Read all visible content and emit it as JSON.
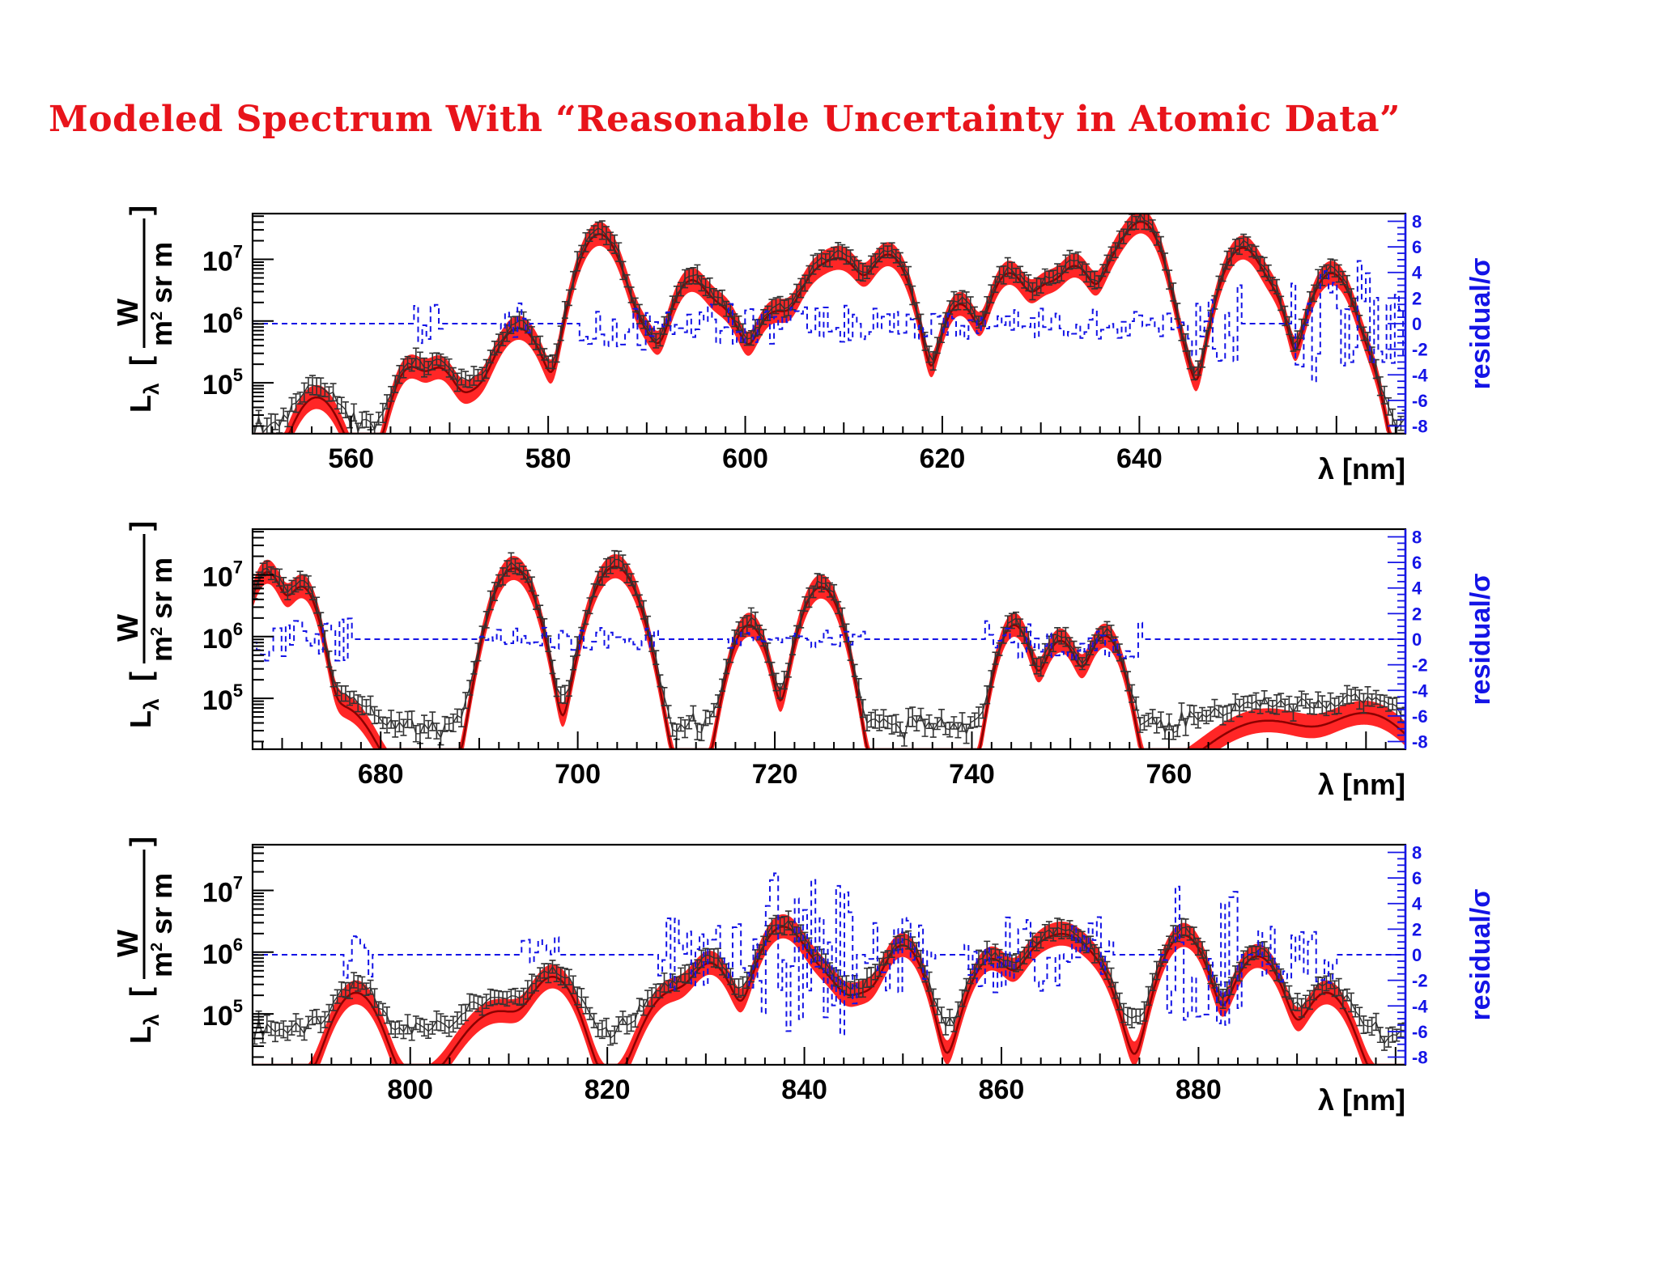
{
  "page": {
    "title": "Modeled Spectrum With “Reasonable Uncertainty in Atomic Data”"
  },
  "colors": {
    "title": "#e8141b",
    "data_points": "#333333",
    "model_line": "#8b0000",
    "uncertainty_band": "#ff1a1a",
    "residual_line": "#1414e6",
    "axis": "#000000"
  },
  "axes_common": {
    "y_label_main": "L",
    "y_label_sub": "λ",
    "y_label_unit_num": "W",
    "y_label_unit_den": "m",
    "y_label_unit_den_sup": "2",
    "y_label_unit_den_rest": " sr m",
    "y_scale": "log",
    "y_ticks": [
      {
        "value": 100000,
        "base": "10",
        "exp": "5"
      },
      {
        "value": 1000000,
        "base": "10",
        "exp": "6"
      },
      {
        "value": 10000000,
        "base": "10",
        "exp": "7"
      }
    ],
    "y_range": [
      15000,
      55000000
    ],
    "x_label": "λ [nm]",
    "residual_label": "residual/σ",
    "residual_range": [
      -8.6,
      8.6
    ],
    "residual_ticks": [
      "8",
      "6",
      "4",
      "2",
      "0",
      "-2",
      "-4",
      "-6",
      "-8"
    ]
  },
  "chart_data": [
    {
      "type": "line",
      "x_range": [
        550,
        667
      ],
      "x_ticks": [
        "560",
        "580",
        "600",
        "620",
        "640"
      ],
      "data_floor": 17000,
      "peaks": [
        {
          "x": 556.5,
          "y": 65000,
          "w": 1.6
        },
        {
          "x": 566.0,
          "y": 200000,
          "w": 1.2
        },
        {
          "x": 569.0,
          "y": 190000,
          "w": 1.2
        },
        {
          "x": 572.5,
          "y": 70000,
          "w": 1.5
        },
        {
          "x": 577.0,
          "y": 900000,
          "w": 1.6
        },
        {
          "x": 585.2,
          "y": 30000000,
          "w": 1.4
        },
        {
          "x": 589.0,
          "y": 900000,
          "w": 1.5
        },
        {
          "x": 594.5,
          "y": 5200000,
          "w": 1.3
        },
        {
          "x": 597.5,
          "y": 1800000,
          "w": 1.4
        },
        {
          "x": 603.0,
          "y": 1600000,
          "w": 1.4
        },
        {
          "x": 607.5,
          "y": 7000000,
          "w": 1.5
        },
        {
          "x": 610.0,
          "y": 10000000,
          "w": 1.4
        },
        {
          "x": 614.5,
          "y": 14000000,
          "w": 1.4
        },
        {
          "x": 621.8,
          "y": 2200000,
          "w": 1.2
        },
        {
          "x": 626.8,
          "y": 7000000,
          "w": 1.3
        },
        {
          "x": 630.5,
          "y": 4000000,
          "w": 1.2
        },
        {
          "x": 633.5,
          "y": 9000000,
          "w": 1.3
        },
        {
          "x": 638.0,
          "y": 12000000,
          "w": 1.3
        },
        {
          "x": 640.3,
          "y": 45000000,
          "w": 1.3
        },
        {
          "x": 644.0,
          "y": 300000,
          "w": 1.0
        },
        {
          "x": 650.5,
          "y": 18000000,
          "w": 1.4
        },
        {
          "x": 653.5,
          "y": 2500000,
          "w": 1.0
        },
        {
          "x": 659.5,
          "y": 7000000,
          "w": 1.4
        },
        {
          "x": 663.0,
          "y": 200000,
          "w": 1.0
        }
      ],
      "residual_segments": [
        {
          "x0": 566,
          "x1": 569,
          "amp": 2.2
        },
        {
          "x0": 575,
          "x1": 578,
          "amp": 2.0
        },
        {
          "x0": 583,
          "x1": 590,
          "amp": 2.2
        },
        {
          "x0": 590,
          "x1": 612,
          "amp": 1.6
        },
        {
          "x0": 612,
          "x1": 645,
          "amp": 1.2
        },
        {
          "x0": 645,
          "x1": 650,
          "amp": 3.5
        },
        {
          "x0": 655,
          "x1": 667,
          "amp": 5.0
        }
      ]
    },
    {
      "type": "line",
      "x_range": [
        667,
        784
      ],
      "x_ticks": [
        "680",
        "700",
        "720",
        "740",
        "760"
      ],
      "data_floor": 30000,
      "peaks": [
        {
          "x": 668.5,
          "y": 13000000,
          "w": 1.1
        },
        {
          "x": 672.0,
          "y": 7500000,
          "w": 1.1
        },
        {
          "x": 676.0,
          "y": 80000,
          "w": 2.0
        },
        {
          "x": 693.5,
          "y": 15000000,
          "w": 1.4
        },
        {
          "x": 703.8,
          "y": 16000000,
          "w": 1.5
        },
        {
          "x": 717.4,
          "y": 1800000,
          "w": 1.2
        },
        {
          "x": 724.7,
          "y": 7500000,
          "w": 1.3
        },
        {
          "x": 744.3,
          "y": 1800000,
          "w": 1.1
        },
        {
          "x": 749.0,
          "y": 1000000,
          "w": 1.2
        },
        {
          "x": 753.5,
          "y": 1200000,
          "w": 1.2
        },
        {
          "x": 770.0,
          "y": 45000,
          "w": 4.0
        },
        {
          "x": 780.0,
          "y": 60000,
          "w": 3.0
        }
      ],
      "residual_segments": [
        {
          "x0": 667,
          "x1": 677,
          "amp": 1.8
        },
        {
          "x0": 690,
          "x1": 708,
          "amp": 0.9
        },
        {
          "x0": 715,
          "x1": 729,
          "amp": 0.7
        },
        {
          "x0": 741,
          "x1": 757,
          "amp": 1.6
        }
      ]
    },
    {
      "type": "line",
      "x_range": [
        784,
        901
      ],
      "x_ticks": [
        "800",
        "820",
        "840",
        "860",
        "880"
      ],
      "data_floor": 45000,
      "peaks": [
        {
          "x": 794.5,
          "y": 250000,
          "w": 1.6
        },
        {
          "x": 809.0,
          "y": 120000,
          "w": 2.5
        },
        {
          "x": 814.5,
          "y": 450000,
          "w": 1.6
        },
        {
          "x": 826.5,
          "y": 250000,
          "w": 1.8
        },
        {
          "x": 830.5,
          "y": 750000,
          "w": 1.5
        },
        {
          "x": 837.8,
          "y": 3000000,
          "w": 1.6
        },
        {
          "x": 841.5,
          "y": 500000,
          "w": 1.6
        },
        {
          "x": 846.0,
          "y": 220000,
          "w": 1.6
        },
        {
          "x": 850.0,
          "y": 1500000,
          "w": 1.4
        },
        {
          "x": 859.0,
          "y": 900000,
          "w": 1.5
        },
        {
          "x": 864.0,
          "y": 1300000,
          "w": 1.6
        },
        {
          "x": 866.5,
          "y": 1700000,
          "w": 1.5
        },
        {
          "x": 869.0,
          "y": 800000,
          "w": 1.5
        },
        {
          "x": 878.5,
          "y": 2200000,
          "w": 1.5
        },
        {
          "x": 886.0,
          "y": 1000000,
          "w": 1.6
        },
        {
          "x": 893.0,
          "y": 250000,
          "w": 1.6
        }
      ],
      "residual_segments": [
        {
          "x0": 793,
          "x1": 796,
          "amp": 2.0
        },
        {
          "x0": 811,
          "x1": 815,
          "amp": 1.5
        },
        {
          "x0": 825,
          "x1": 835,
          "amp": 3.0
        },
        {
          "x0": 835,
          "x1": 845,
          "amp": 6.5
        },
        {
          "x0": 846,
          "x1": 853,
          "amp": 3.0
        },
        {
          "x0": 856,
          "x1": 871,
          "amp": 3.0
        },
        {
          "x0": 876,
          "x1": 884,
          "amp": 5.5
        },
        {
          "x0": 886,
          "x1": 894,
          "amp": 2.5
        }
      ]
    }
  ]
}
